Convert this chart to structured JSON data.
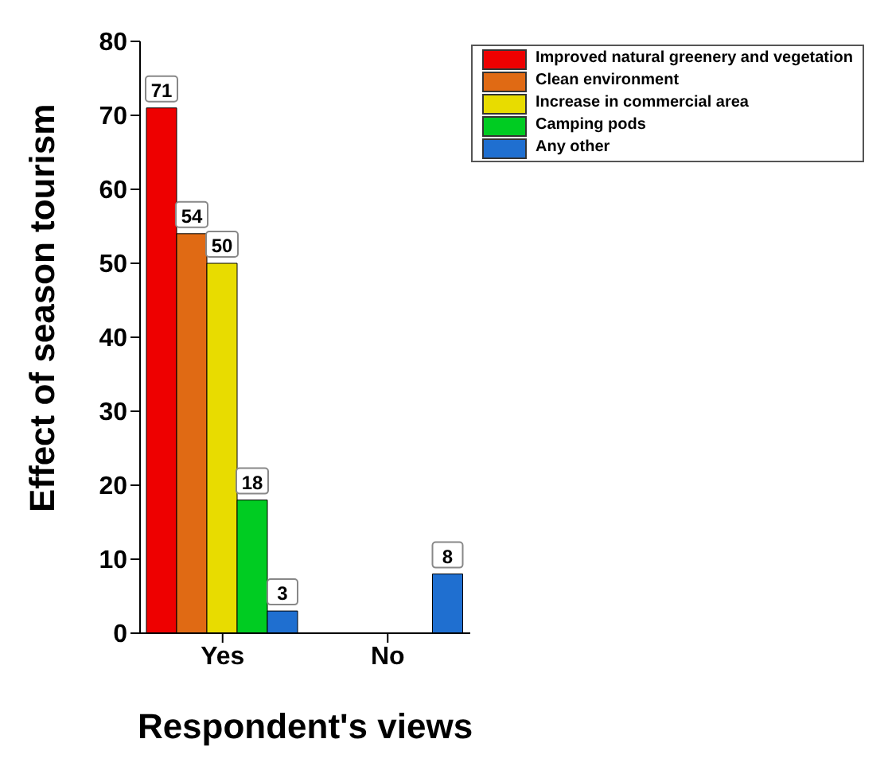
{
  "chart_data": {
    "type": "bar",
    "xlabel": "Respondent's views",
    "ylabel": "Effect of season tourism",
    "categories": [
      "Yes",
      "No"
    ],
    "series": [
      {
        "name": "Improved natural greenery and vegetation",
        "color": "#ee0000",
        "values": [
          71,
          null
        ]
      },
      {
        "name": "Clean environment",
        "color": "#e06a14",
        "values": [
          54,
          null
        ]
      },
      {
        "name": "Increase in commercial area",
        "color": "#e8dc00",
        "values": [
          50,
          null
        ]
      },
      {
        "name": "Camping pods",
        "color": "#00cc22",
        "values": [
          18,
          null
        ]
      },
      {
        "name": "Any other",
        "color": "#1f6fd0",
        "values": [
          3,
          8
        ]
      }
    ],
    "ylim": [
      0,
      80
    ],
    "yticks": [
      0,
      10,
      20,
      30,
      40,
      50,
      60,
      70,
      80
    ],
    "grid": false,
    "legend": "top right",
    "data_labels": true
  }
}
